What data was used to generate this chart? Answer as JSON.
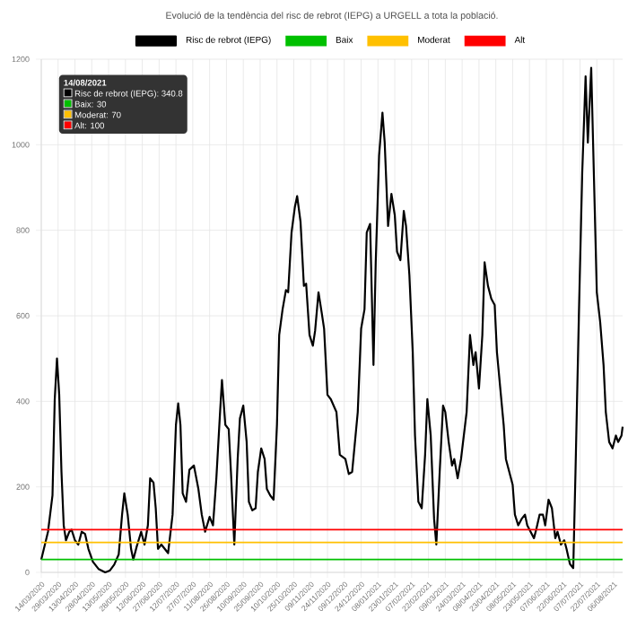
{
  "chart_data": {
    "type": "line",
    "title": "Evolució de la tendència del risc de rebrot (IEPG) a URGELL a tota la població.",
    "xlim": [
      "2020-03-14",
      "2021-08-14"
    ],
    "xticks": [
      {
        "value": "2020-03-14",
        "label": "14/03/2020"
      },
      {
        "value": "2020-03-29",
        "label": "29/03/2020"
      },
      {
        "value": "2020-04-13",
        "label": "13/04/2020"
      },
      {
        "value": "2020-04-28",
        "label": "28/04/2020"
      },
      {
        "value": "2020-05-13",
        "label": "13/05/2020"
      },
      {
        "value": "2020-05-28",
        "label": "28/05/2020"
      },
      {
        "value": "2020-06-12",
        "label": "12/06/2020"
      },
      {
        "value": "2020-06-27",
        "label": "27/06/2020"
      },
      {
        "value": "2020-07-12",
        "label": "12/07/2020"
      },
      {
        "value": "2020-07-27",
        "label": "27/07/2020"
      },
      {
        "value": "2020-08-11",
        "label": "11/08/2020"
      },
      {
        "value": "2020-08-26",
        "label": "26/08/2020"
      },
      {
        "value": "2020-09-10",
        "label": "10/09/2020"
      },
      {
        "value": "2020-09-25",
        "label": "25/09/2020"
      },
      {
        "value": "2020-10-10",
        "label": "10/10/2020"
      },
      {
        "value": "2020-10-25",
        "label": "25/10/2020"
      },
      {
        "value": "2020-11-09",
        "label": "09/11/2020"
      },
      {
        "value": "2020-11-24",
        "label": "24/11/2020"
      },
      {
        "value": "2020-12-09",
        "label": "09/12/2020"
      },
      {
        "value": "2020-12-24",
        "label": "24/12/2020"
      },
      {
        "value": "2021-01-08",
        "label": "08/01/2021"
      },
      {
        "value": "2021-01-23",
        "label": "23/01/2021"
      },
      {
        "value": "2021-02-07",
        "label": "07/02/2021"
      },
      {
        "value": "2021-02-22",
        "label": "22/02/2021"
      },
      {
        "value": "2021-03-09",
        "label": "09/03/2021"
      },
      {
        "value": "2021-03-24",
        "label": "24/03/2021"
      },
      {
        "value": "2021-04-08",
        "label": "08/04/2021"
      },
      {
        "value": "2021-04-23",
        "label": "23/04/2021"
      },
      {
        "value": "2021-05-08",
        "label": "08/05/2021"
      },
      {
        "value": "2021-05-23",
        "label": "23/05/2021"
      },
      {
        "value": "2021-06-07",
        "label": "07/06/2021"
      },
      {
        "value": "2021-06-22",
        "label": "22/06/2021"
      },
      {
        "value": "2021-07-07",
        "label": "07/07/2021"
      },
      {
        "value": "2021-07-22",
        "label": "22/07/2021"
      },
      {
        "value": "2021-08-06",
        "label": "06/08/2021"
      }
    ],
    "ylim": [
      0,
      1200
    ],
    "yticks": [
      0,
      200,
      400,
      600,
      800,
      1000,
      1200
    ],
    "grid": true,
    "legend": "top",
    "marker": "none",
    "line_style": "solid",
    "series": [
      {
        "name": "Risc de rebrot (IEPG)",
        "color": "#000000",
        "x": [
          "2020-03-14",
          "2020-03-20",
          "2020-03-24",
          "2020-03-26",
          "2020-03-28",
          "2020-03-30",
          "2020-04-01",
          "2020-04-03",
          "2020-04-05",
          "2020-04-08",
          "2020-04-10",
          "2020-04-13",
          "2020-04-16",
          "2020-04-19",
          "2020-04-22",
          "2020-04-25",
          "2020-04-29",
          "2020-05-04",
          "2020-05-10",
          "2020-05-14",
          "2020-05-18",
          "2020-05-22",
          "2020-05-25",
          "2020-05-27",
          "2020-05-30",
          "2020-06-02",
          "2020-06-04",
          "2020-06-07",
          "2020-06-11",
          "2020-06-14",
          "2020-06-17",
          "2020-06-19",
          "2020-06-22",
          "2020-06-24",
          "2020-06-26",
          "2020-06-29",
          "2020-07-02",
          "2020-07-05",
          "2020-07-09",
          "2020-07-12",
          "2020-07-14",
          "2020-07-16",
          "2020-07-18",
          "2020-07-21",
          "2020-07-24",
          "2020-07-28",
          "2020-08-01",
          "2020-08-04",
          "2020-08-07",
          "2020-08-11",
          "2020-08-14",
          "2020-08-17",
          "2020-08-20",
          "2020-08-22",
          "2020-08-25",
          "2020-08-28",
          "2020-08-30",
          "2020-09-02",
          "2020-09-05",
          "2020-09-07",
          "2020-09-10",
          "2020-09-13",
          "2020-09-15",
          "2020-09-18",
          "2020-09-21",
          "2020-09-23",
          "2020-09-26",
          "2020-09-29",
          "2020-10-01",
          "2020-10-04",
          "2020-10-07",
          "2020-10-10",
          "2020-10-12",
          "2020-10-15",
          "2020-10-18",
          "2020-10-20",
          "2020-10-23",
          "2020-10-26",
          "2020-10-28",
          "2020-10-31",
          "2020-11-03",
          "2020-11-05",
          "2020-11-08",
          "2020-11-11",
          "2020-11-13",
          "2020-11-16",
          "2020-11-19",
          "2020-11-21",
          "2020-11-24",
          "2020-11-27",
          "2020-12-02",
          "2020-12-05",
          "2020-12-10",
          "2020-12-13",
          "2020-12-16",
          "2020-12-21",
          "2020-12-24",
          "2020-12-27",
          "2020-12-29",
          "2021-01-01",
          "2021-01-04",
          "2021-01-06",
          "2021-01-09",
          "2021-01-12",
          "2021-01-14",
          "2021-01-17",
          "2021-01-20",
          "2021-01-23",
          "2021-01-25",
          "2021-01-28",
          "2021-01-31",
          "2021-02-02",
          "2021-02-05",
          "2021-02-08",
          "2021-02-10",
          "2021-02-13",
          "2021-02-16",
          "2021-02-19",
          "2021-02-21",
          "2021-02-24",
          "2021-02-27",
          "2021-03-01",
          "2021-03-04",
          "2021-03-07",
          "2021-03-09",
          "2021-03-12",
          "2021-03-15",
          "2021-03-17",
          "2021-03-20",
          "2021-03-23",
          "2021-03-28",
          "2021-03-31",
          "2021-04-03",
          "2021-04-05",
          "2021-04-08",
          "2021-04-11",
          "2021-04-13",
          "2021-04-16",
          "2021-04-19",
          "2021-04-22",
          "2021-04-24",
          "2021-04-27",
          "2021-04-30",
          "2021-05-02",
          "2021-05-08",
          "2021-05-10",
          "2021-05-13",
          "2021-05-16",
          "2021-05-19",
          "2021-05-21",
          "2021-05-24",
          "2021-05-27",
          "2021-05-29",
          "2021-06-01",
          "2021-06-04",
          "2021-06-06",
          "2021-06-09",
          "2021-06-12",
          "2021-06-15",
          "2021-06-17",
          "2021-06-20",
          "2021-06-23",
          "2021-06-25",
          "2021-06-28",
          "2021-07-01",
          "2021-07-03",
          "2021-07-06",
          "2021-07-09",
          "2021-07-12",
          "2021-07-14",
          "2021-07-17",
          "2021-07-20",
          "2021-07-22",
          "2021-07-25",
          "2021-07-28",
          "2021-07-30",
          "2021-08-02",
          "2021-08-05",
          "2021-08-08",
          "2021-08-10",
          "2021-08-13",
          "2021-08-14"
        ],
        "values": [
          30,
          95,
          180,
          405,
          500,
          415,
          235,
          110,
          75,
          95,
          100,
          75,
          65,
          95,
          90,
          55,
          25,
          8,
          0,
          4,
          18,
          42,
          135,
          185,
          135,
          55,
          30,
          60,
          95,
          65,
          110,
          220,
          210,
          150,
          55,
          65,
          55,
          45,
          135,
          345,
          395,
          345,
          185,
          165,
          240,
          250,
          195,
          135,
          95,
          130,
          110,
          220,
          360,
          450,
          345,
          335,
          235,
          65,
          265,
          360,
          390,
          305,
          165,
          145,
          150,
          235,
          290,
          265,
          195,
          180,
          170,
          345,
          555,
          615,
          660,
          655,
          795,
          855,
          880,
          820,
          670,
          675,
          555,
          530,
          565,
          655,
          605,
          570,
          415,
          405,
          375,
          275,
          265,
          230,
          235,
          375,
          570,
          615,
          795,
          815,
          485,
          725,
          975,
          1075,
          1005,
          810,
          885,
          835,
          750,
          730,
          845,
          810,
          695,
          515,
          320,
          165,
          150,
          275,
          405,
          320,
          125,
          65,
          235,
          390,
          375,
          305,
          250,
          265,
          220,
          265,
          375,
          555,
          485,
          515,
          430,
          555,
          725,
          670,
          640,
          625,
          515,
          430,
          345,
          265,
          205,
          135,
          110,
          125,
          135,
          110,
          95,
          80,
          100,
          135,
          135,
          110,
          170,
          150,
          80,
          95,
          65,
          75,
          55,
          20,
          10,
          235,
          600,
          935,
          1160,
          1005,
          1180,
          865,
          655,
          585,
          485,
          375,
          305,
          290,
          320,
          305,
          320,
          340.8
        ]
      }
    ],
    "ref_lines": [
      {
        "axis": "y",
        "value": 30,
        "label": "Baix",
        "color": "#00c000"
      },
      {
        "axis": "y",
        "value": 70,
        "label": "Moderat",
        "color": "#ffc000"
      },
      {
        "axis": "y",
        "value": 100,
        "label": "Alt",
        "color": "#ff0000"
      }
    ],
    "annotations": [
      "14/08/2021",
      "Risc de rebrot (IEPG): 340.8",
      "Baix: 30",
      "Moderat: 70",
      "Alt: 100"
    ]
  }
}
